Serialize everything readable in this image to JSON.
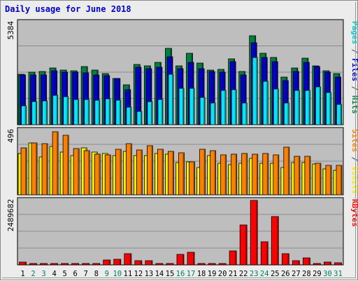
{
  "chart_data": {
    "title": "Daily usage for June 2018",
    "type": "bar",
    "categories": [
      "1",
      "2",
      "3",
      "4",
      "5",
      "6",
      "7",
      "8",
      "9",
      "10",
      "11",
      "12",
      "13",
      "14",
      "15",
      "16",
      "17",
      "18",
      "19",
      "20",
      "21",
      "22",
      "23",
      "24",
      "25",
      "26",
      "27",
      "28",
      "29",
      "30",
      "31"
    ],
    "weekend_days": [
      "2",
      "3",
      "9",
      "10",
      "16",
      "17",
      "23",
      "24",
      "30",
      "31"
    ],
    "panels": [
      {
        "id": "hits-files-pages",
        "max_label": "5384",
        "ylim": [
          0,
          5384
        ],
        "legend": [
          {
            "text": "Pages",
            "color": "#00c8c8"
          },
          {
            "text": " / ",
            "color": "#444444"
          },
          {
            "text": "Files",
            "color": "#0000c8"
          },
          {
            "text": " / ",
            "color": "#444444"
          },
          {
            "text": "Hits",
            "color": "#008040"
          }
        ],
        "series": [
          {
            "name": "Hits",
            "color": "#008040",
            "values": [
              2660,
              2770,
              2810,
              2990,
              2870,
              2840,
              3050,
              2870,
              2700,
              2450,
              2110,
              3180,
              3110,
              3290,
              4030,
              3100,
              3760,
              3250,
              2880,
              2920,
              3450,
              2800,
              4700,
              3750,
              3530,
              2510,
              2980,
              3520,
              3100,
              2840,
              2690
            ]
          },
          {
            "name": "Files",
            "color": "#0000c8",
            "values": [
              2600,
              2610,
              2600,
              2830,
              2780,
              2750,
              2720,
              2620,
              2570,
              2420,
              1860,
              3010,
              2960,
              3010,
              3580,
              2940,
              3290,
              2950,
              2800,
              2760,
              3310,
              2600,
              4330,
              3550,
              3330,
              2330,
              2790,
              3300,
              3060,
              2770,
              2490
            ]
          },
          {
            "name": "Pages",
            "color": "#00e8f8",
            "values": [
              1000,
              1210,
              1240,
              1560,
              1480,
              1320,
              1340,
              1280,
              1380,
              1300,
              920,
              700,
              1230,
              1330,
              2640,
              1900,
              1900,
              1430,
              1150,
              1800,
              1840,
              1150,
              3540,
              2290,
              1870,
              1150,
              1810,
              1790,
              1990,
              1680,
              1080
            ]
          }
        ]
      },
      {
        "id": "visits-sites",
        "max_label": "496",
        "ylim": [
          0,
          496
        ],
        "legend": [
          {
            "text": "Sites",
            "color": "#ff8000"
          },
          {
            "text": " / ",
            "color": "#444444"
          },
          {
            "text": "Visits",
            "color": "#f0f000"
          }
        ],
        "series": [
          {
            "name": "Visits",
            "color": "#f0f000",
            "values": [
              320,
              400,
              290,
              370,
              330,
              300,
              360,
              330,
              320,
              300,
              335,
              300,
              300,
              320,
              310,
              250,
              255,
              210,
              300,
              245,
              230,
              240,
              280,
              245,
              240,
              210,
              250,
              250,
              235,
              200,
              190
            ]
          },
          {
            "name": "Sites",
            "color": "#ff8000",
            "values": [
              360,
              400,
              395,
              484,
              460,
              358,
              340,
              315,
              305,
              350,
              395,
              345,
              375,
              348,
              335,
              325,
              255,
              348,
              340,
              305,
              315,
              320,
              312,
              320,
              305,
              365,
              295,
              295,
              240,
              225,
              225
            ]
          }
        ]
      },
      {
        "id": "kbytes",
        "max_label": "2489682",
        "ylim": [
          0,
          2489682
        ],
        "legend": [
          {
            "text": "KBytes",
            "color": "#ff0000"
          }
        ],
        "series": [
          {
            "name": "KBytes",
            "color": "#ff0000",
            "values": [
              120000,
              30000,
              30000,
              30000,
              40000,
              60000,
              35000,
              60000,
              200000,
              220000,
              440000,
              160000,
              150000,
              60000,
              60000,
              400000,
              480000,
              60000,
              50000,
              50000,
              550000,
              1550000,
              2480000,
              900000,
              1880000,
              420000,
              150000,
              260000,
              60000,
              110000,
              90000
            ]
          }
        ]
      }
    ]
  }
}
